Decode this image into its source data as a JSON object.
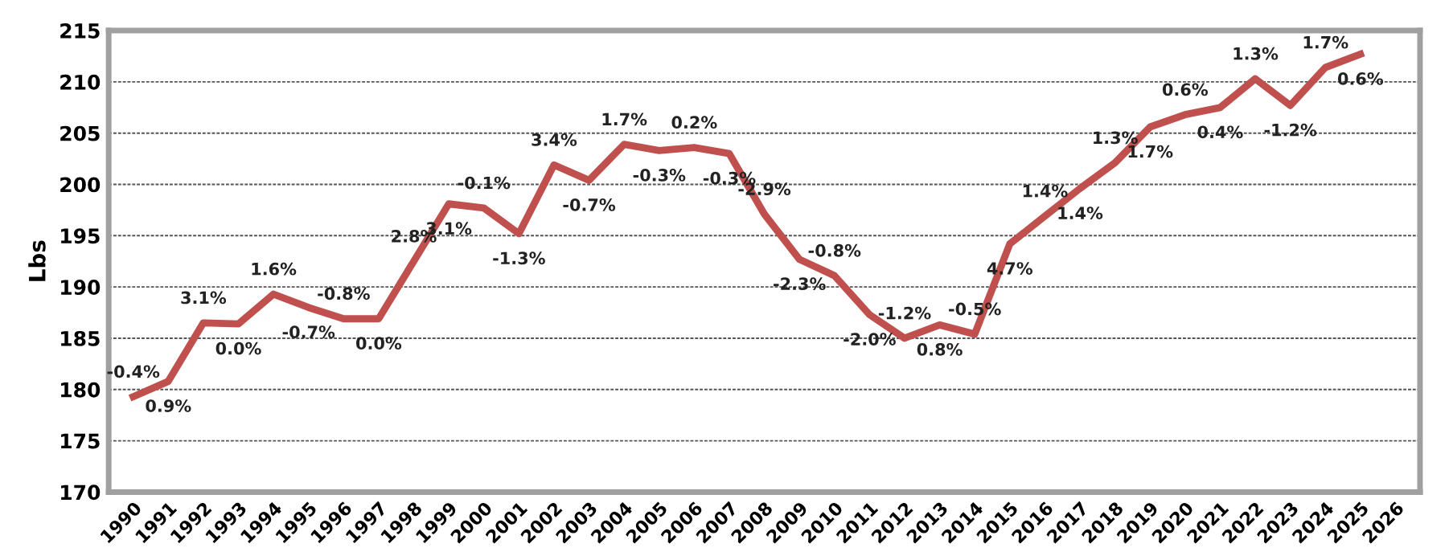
{
  "chart_data": {
    "type": "line",
    "ylabel": "Lbs",
    "categories": [
      "1990",
      "1991",
      "1992",
      "1993",
      "1994",
      "1995",
      "1996",
      "1997",
      "1998",
      "1999",
      "2000",
      "2001",
      "2002",
      "2003",
      "2004",
      "2005",
      "2006",
      "2007",
      "2008",
      "2009",
      "2010",
      "2011",
      "2012",
      "2013",
      "2014",
      "2015",
      "2016",
      "2017",
      "2018",
      "2019",
      "2020",
      "2021",
      "2022",
      "2023",
      "2024",
      "2025",
      "2026"
    ],
    "series": [
      {
        "color": "#c0504d",
        "values": [
          179.3,
          180.8,
          186.5,
          186.4,
          189.3,
          188.0,
          186.9,
          186.9,
          192.5,
          198.1,
          197.7,
          195.2,
          201.9,
          200.4,
          203.9,
          203.3,
          203.6,
          203.0,
          197.1,
          192.7,
          191.1,
          187.3,
          185.0,
          186.3,
          185.4,
          194.2,
          196.9,
          199.6,
          202.1,
          205.6,
          206.8,
          207.5,
          210.3,
          207.7,
          211.4,
          212.7,
          null
        ]
      }
    ],
    "annotations": [
      {
        "text": "-0.4%",
        "x": "1990",
        "y": 179.3
      },
      {
        "text": "0.9%",
        "x": "1991",
        "y": 180.8
      },
      {
        "text": "3.1%",
        "x": "1992",
        "y": 186.5
      },
      {
        "text": "0.0%",
        "x": "1993",
        "y": 186.4
      },
      {
        "text": "1.6%",
        "x": "1994",
        "y": 189.3
      },
      {
        "text": "-0.7%",
        "x": "1995",
        "y": 188.0
      },
      {
        "text": "-0.8%",
        "x": "1996",
        "y": 186.9
      },
      {
        "text": "0.0%",
        "x": "1997",
        "y": 186.9
      },
      {
        "text": "2.8%",
        "x": "1998",
        "y": 192.5
      },
      {
        "text": "3.1%",
        "x": "1999",
        "y": 198.1
      },
      {
        "text": "-0.1%",
        "x": "2000",
        "y": 197.7
      },
      {
        "text": "-1.3%",
        "x": "2001",
        "y": 195.2
      },
      {
        "text": "3.4%",
        "x": "2002",
        "y": 201.9
      },
      {
        "text": "-0.7%",
        "x": "2003",
        "y": 200.4
      },
      {
        "text": "1.7%",
        "x": "2004",
        "y": 203.9
      },
      {
        "text": "-0.3%",
        "x": "2005",
        "y": 203.3
      },
      {
        "text": "0.2%",
        "x": "2006",
        "y": 203.6
      },
      {
        "text": "-0.3%",
        "x": "2007",
        "y": 203.0
      },
      {
        "text": "-2.9%",
        "x": "2008",
        "y": 197.1
      },
      {
        "text": "-2.3%",
        "x": "2009",
        "y": 192.7
      },
      {
        "text": "-0.8%",
        "x": "2010",
        "y": 191.1
      },
      {
        "text": "-2.0%",
        "x": "2011",
        "y": 187.3
      },
      {
        "text": "-1.2%",
        "x": "2012",
        "y": 185.0
      },
      {
        "text": "0.8%",
        "x": "2013",
        "y": 186.3
      },
      {
        "text": "-0.5%",
        "x": "2014",
        "y": 185.4
      },
      {
        "text": "4.7%",
        "x": "2015",
        "y": 194.2
      },
      {
        "text": "1.4%",
        "x": "2016",
        "y": 196.9
      },
      {
        "text": "1.4%",
        "x": "2017",
        "y": 199.6
      },
      {
        "text": "1.3%",
        "x": "2018",
        "y": 202.1
      },
      {
        "text": "1.7%",
        "x": "2019",
        "y": 205.6
      },
      {
        "text": "0.6%",
        "x": "2020",
        "y": 206.8
      },
      {
        "text": "0.4%",
        "x": "2021",
        "y": 207.5
      },
      {
        "text": "1.3%",
        "x": "2022",
        "y": 210.3
      },
      {
        "text": "-1.2%",
        "x": "2023",
        "y": 207.7
      },
      {
        "text": "1.7%",
        "x": "2024",
        "y": 211.4
      },
      {
        "text": "0.6%",
        "x": "2025",
        "y": 212.7
      }
    ],
    "ylim": [
      170,
      215
    ],
    "yticks": [
      170,
      175,
      180,
      185,
      190,
      195,
      200,
      205,
      210,
      215
    ],
    "grid": "y",
    "marker": "none",
    "line_style": "solid",
    "legend": false
  }
}
